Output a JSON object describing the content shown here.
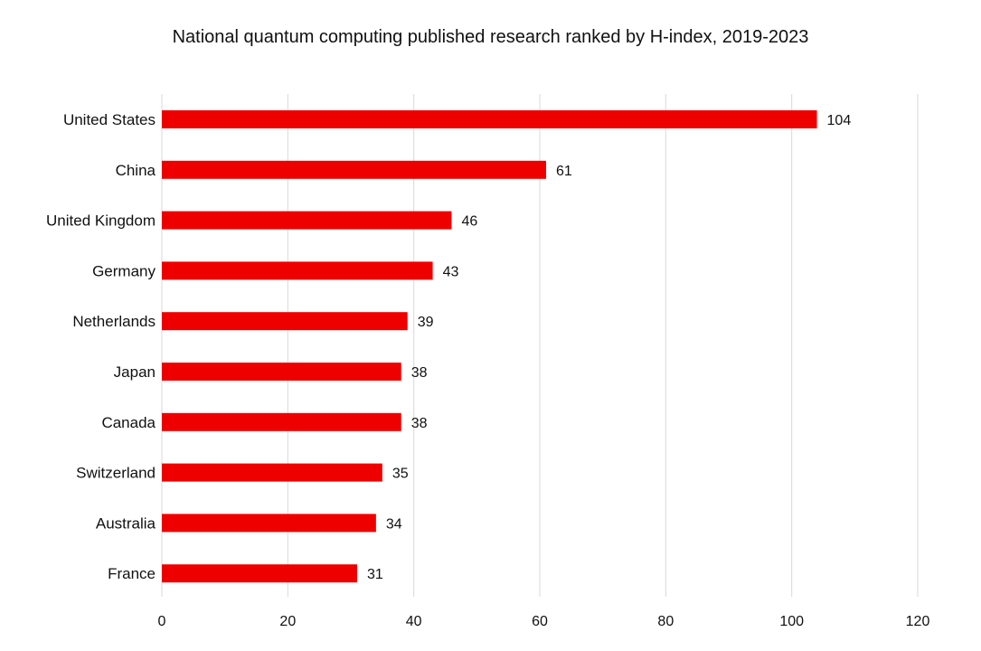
{
  "chart_data": {
    "type": "bar",
    "orientation": "horizontal",
    "title": "National quantum computing published research ranked by H-index, 2019-2023",
    "xlabel": "",
    "ylabel": "",
    "categories": [
      "United States",
      "China",
      "United Kingdom",
      "Germany",
      "Netherlands",
      "Japan",
      "Canada",
      "Switzerland",
      "Australia",
      "France"
    ],
    "values": [
      104,
      61,
      46,
      43,
      39,
      38,
      38,
      35,
      34,
      31
    ],
    "xlim": [
      0,
      120
    ],
    "xticks": [
      0,
      20,
      40,
      60,
      80,
      100,
      120
    ],
    "grid": "vertical",
    "legend": "none",
    "bar_color": "#ee0000",
    "grid_color": "#d9d9d9"
  }
}
